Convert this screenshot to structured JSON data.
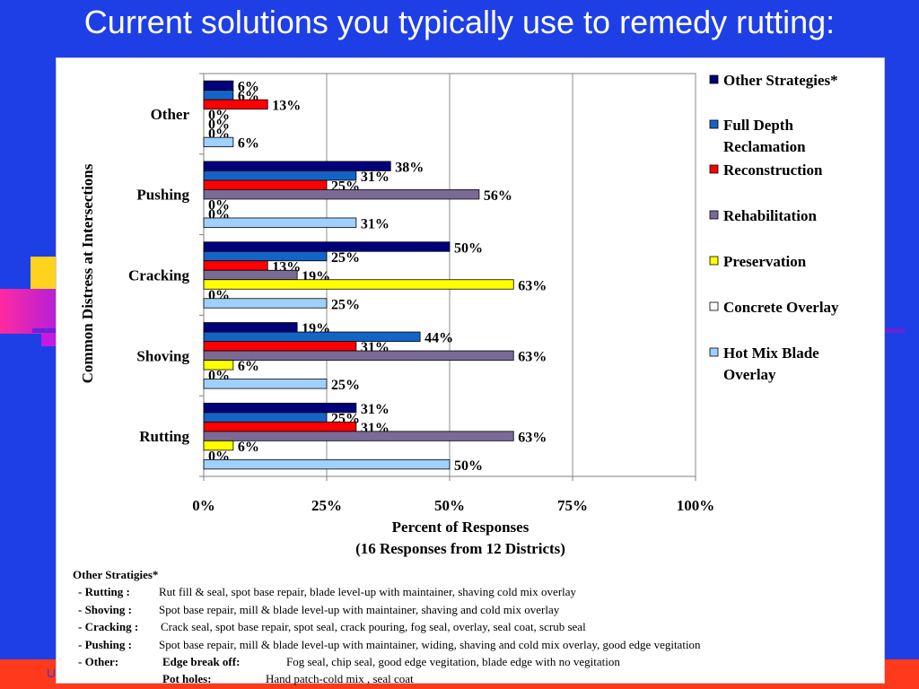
{
  "slide": {
    "title": "Current solutions you typically use to remedy rutting:",
    "footer_left": "U"
  },
  "chart_data": {
    "type": "bar",
    "orientation": "horizontal",
    "title": "",
    "categories": [
      "Other",
      "Pushing",
      "Cracking",
      "Shoving",
      "Rutting"
    ],
    "series": [
      {
        "name": "Other Strategies*",
        "color": "#00007a",
        "values": [
          6,
          38,
          50,
          19,
          31
        ]
      },
      {
        "name": "Full Depth Reclamation",
        "color": "#1463c7",
        "values": [
          6,
          31,
          25,
          44,
          25
        ]
      },
      {
        "name": "Reconstruction",
        "color": "#ff0000",
        "values": [
          13,
          25,
          13,
          31,
          31
        ]
      },
      {
        "name": "Rehabilitation",
        "color": "#7a6a96",
        "values": [
          0,
          56,
          19,
          63,
          63
        ]
      },
      {
        "name": "Preservation",
        "color": "#ffff00",
        "values": [
          0,
          0,
          63,
          6,
          6
        ]
      },
      {
        "name": "Concrete Overlay",
        "color": "#ffffff",
        "values": [
          0,
          0,
          0,
          0,
          0
        ]
      },
      {
        "name": "Hot Mix Blade Overlay",
        "color": "#9fd0ff",
        "values": [
          6,
          31,
          25,
          25,
          50
        ]
      }
    ],
    "xlabel": "Percent of Responses",
    "xlabel_sub": "(16 Responses from 12 Districts)",
    "ylabel": "Common Distress at Intersections",
    "xlim": [
      0,
      100
    ],
    "xticks": [
      "0%",
      "25%",
      "50%",
      "75%",
      "100%"
    ],
    "value_suffix": "%",
    "grid": true,
    "legend_position": "right"
  },
  "notes": {
    "title": "Other Stratigies*",
    "rows": [
      {
        "key": "- Rutting :",
        "text": "Rut fill & seal, spot base repair, blade level-up with maintainer, shaving cold mix overlay"
      },
      {
        "key": "- Shoving :",
        "text": "Spot base repair, mill & blade level-up with maintainer, shaving and cold mix overlay"
      },
      {
        "key": "- Cracking :",
        "text": "Crack seal, spot base repair, spot seal, crack pouring, fog seal, overlay, seal coat, scrub seal"
      },
      {
        "key": "- Pushing :",
        "text": "Spot base repair, mill & blade level-up with maintainer, widing, shaving and cold mix overlay, good edge vegitation"
      },
      {
        "key": "- Other:",
        "text": "",
        "sub_key": "Edge break off:",
        "sub_text": "Fog seal, chip seal, good edge vegitation, blade edge with no vegitation"
      },
      {
        "key": "",
        "text": "",
        "sub_key": "Pot holes:",
        "sub_text": "Hand patch-cold mix , seal coat"
      }
    ]
  }
}
